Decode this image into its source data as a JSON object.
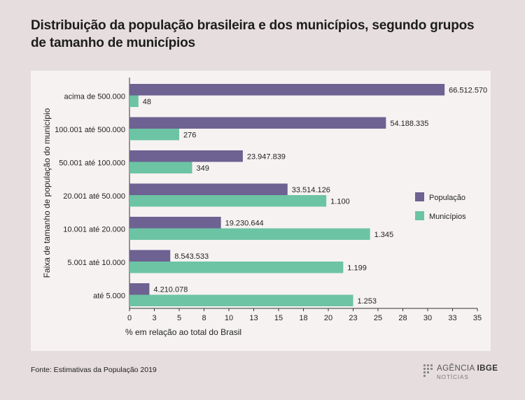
{
  "title": {
    "line1": "Distribuição da população brasileira e dos municípios, segundo grupos",
    "line2": "de tamanho de municípios"
  },
  "source": "Fonte: Estimativas da População 2019",
  "brand": {
    "name_part1": "AGÊNCIA",
    "name_part2": "IBGE",
    "subtitle": "NOTÍCIAS"
  },
  "chart_data": {
    "type": "bar",
    "orientation": "horizontal",
    "categories": [
      "acima de 500.000",
      "100.001 até 500.000",
      "50.001 até 100.000",
      "20.001 até 50.000",
      "10.001 até 20.000",
      "5.001 até 10.000",
      "até 5.000"
    ],
    "series": [
      {
        "name": "População",
        "color": "#6d6291",
        "values": [
          31.7,
          25.8,
          11.4,
          15.9,
          9.2,
          4.1,
          2.0
        ],
        "labels": [
          "66.512.570",
          "54.188.335",
          "23.947.839",
          "33.514.126",
          "19.230.644",
          "8.543.533",
          "4.210.078"
        ]
      },
      {
        "name": "Municípios",
        "color": "#6cc4a4",
        "values": [
          0.9,
          5.0,
          6.3,
          19.8,
          24.2,
          21.5,
          22.5
        ],
        "labels": [
          "48",
          "276",
          "349",
          "1.100",
          "1.345",
          "1.199",
          "1.253"
        ]
      }
    ],
    "xlim": [
      0,
      35
    ],
    "xticks": [
      "0",
      "3",
      "5",
      "8",
      "10",
      "13",
      "15",
      "18",
      "20",
      "23",
      "25",
      "28",
      "30",
      "33",
      "35"
    ],
    "xlabel": "% em relação ao total do Brasil",
    "ylabel": "Faixa de tamanho de população do município",
    "legend_position": "right",
    "grid": false
  }
}
